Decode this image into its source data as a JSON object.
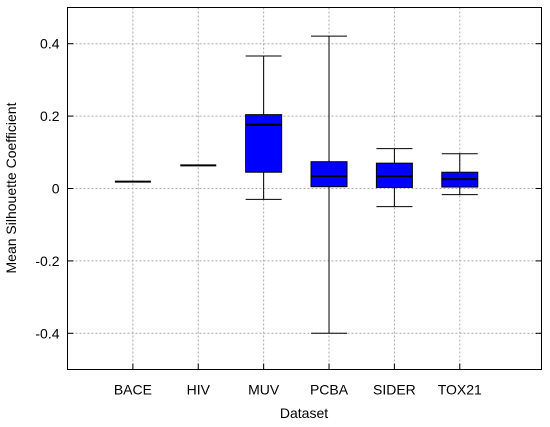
{
  "chart_data": {
    "type": "box",
    "xlabel": "Dataset",
    "ylabel": "Mean Silhouette Coefficient",
    "ylim": [
      -0.5,
      0.5
    ],
    "yticks": [
      0.4,
      0.2,
      0,
      -0.2,
      -0.4
    ],
    "ytick_labels": [
      "0.4",
      "0.2",
      "0",
      "-0.2",
      "-0.4"
    ],
    "categories": [
      "BACE",
      "HIV",
      "MUV",
      "PCBA",
      "SIDER",
      "TOX21"
    ],
    "grid": true,
    "box_color": "#0000ff",
    "boxes": [
      {
        "category": "BACE",
        "min": 0.019,
        "q1": 0.019,
        "median": 0.019,
        "q3": 0.019,
        "max": 0.019
      },
      {
        "category": "HIV",
        "min": 0.064,
        "q1": 0.064,
        "median": 0.064,
        "q3": 0.064,
        "max": 0.064
      },
      {
        "category": "MUV",
        "min": -0.03,
        "q1": 0.045,
        "median": 0.176,
        "q3": 0.204,
        "max": 0.366
      },
      {
        "category": "PCBA",
        "min": -0.4,
        "q1": 0.005,
        "median": 0.034,
        "q3": 0.074,
        "max": 0.421
      },
      {
        "category": "SIDER",
        "min": -0.05,
        "q1": 0.003,
        "median": 0.034,
        "q3": 0.07,
        "max": 0.11
      },
      {
        "category": "TOX21",
        "min": -0.017,
        "q1": 0.004,
        "median": 0.026,
        "q3": 0.045,
        "max": 0.096
      }
    ]
  }
}
